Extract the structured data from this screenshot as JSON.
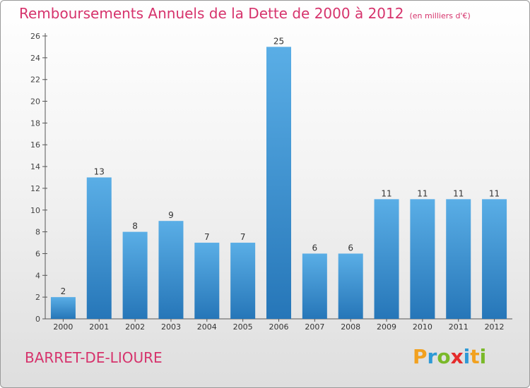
{
  "title": "Remboursements Annuels de la Dette de 2000 à 2012",
  "unit_note": "(en milliers d'€)",
  "commune": "BARRET-DE-LIOURE",
  "brand": {
    "letters": [
      "P",
      "r",
      "o",
      "x",
      "i",
      "t",
      "i"
    ],
    "colors": [
      "#f2a11f",
      "#2e9ad6",
      "#7ab929",
      "#e52c2c",
      "#2e9ad6",
      "#f2a11f",
      "#7ab929"
    ]
  },
  "colors": {
    "title": "#d6336c",
    "bar_light": "#5aaee6",
    "bar_dark": "#2676b8"
  },
  "chart_data": {
    "type": "bar",
    "title": "Remboursements Annuels de la Dette de 2000 à 2012",
    "categories": [
      "2000",
      "2001",
      "2002",
      "2003",
      "2004",
      "2005",
      "2006",
      "2007",
      "2008",
      "2009",
      "2010",
      "2011",
      "2012"
    ],
    "values": [
      2,
      13,
      8,
      9,
      7,
      7,
      25,
      6,
      6,
      11,
      11,
      11,
      11
    ],
    "ylim": [
      0,
      26
    ],
    "yticks": [
      0,
      2,
      4,
      6,
      8,
      10,
      12,
      14,
      16,
      18,
      20,
      22,
      24,
      26
    ],
    "xlabel": "",
    "ylabel": "",
    "grid": false,
    "data_labels": true
  }
}
